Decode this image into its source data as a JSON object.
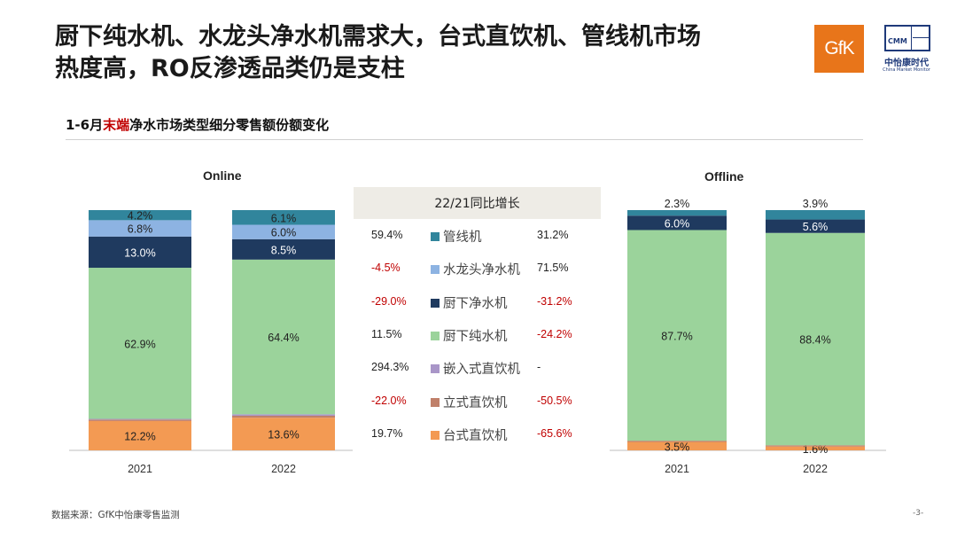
{
  "header": {
    "title_line1": "厨下纯水机、水龙头净水机需求大，台式直饮机、管线机市场",
    "title_line2": "热度高，RO反渗透品类仍是支柱",
    "logo_gfk": "GfK",
    "logo_cmm_en": "CMM",
    "logo_cmm_cn": "中怡康时代",
    "logo_cmm_sub": "China Market Monitor"
  },
  "subtitle": {
    "prefix": "1-6月",
    "highlight": "末端",
    "suffix": "净水市场类型细分零售额份额变化"
  },
  "colors": {
    "管线机": "#31859c",
    "水龙头净水机": "#8db3e2",
    "厨下净水机": "#1f3a5f",
    "厨下纯水机": "#9bd39b",
    "嵌入式直饮机": "#a996c8",
    "立式直饮机": "#c0806a",
    "台式直饮机": "#f39a53",
    "negative_text": "#c00000",
    "title_highlight": "#c00000"
  },
  "growth_table": {
    "header": "22/21同比增长",
    "rows": [
      {
        "online": "59.4%",
        "category": "管线机",
        "offline": "31.2%"
      },
      {
        "online": "-4.5%",
        "category": "水龙头净水机",
        "offline": "71.5%"
      },
      {
        "online": "-29.0%",
        "category": "厨下净水机",
        "offline": "-31.2%"
      },
      {
        "online": "11.5%",
        "category": "厨下纯水机",
        "offline": "-24.2%"
      },
      {
        "online": "294.3%",
        "category": "嵌入式直饮机",
        "offline": "-"
      },
      {
        "online": "-22.0%",
        "category": "立式直饮机",
        "offline": "-50.5%"
      },
      {
        "online": "19.7%",
        "category": "台式直饮机",
        "offline": "-65.6%"
      }
    ]
  },
  "chart_data": [
    {
      "type": "bar",
      "stacked": true,
      "title": "Online",
      "categories": [
        "2021",
        "2022"
      ],
      "series": [
        {
          "name": "台式直饮机",
          "values": [
            12.2,
            13.6
          ],
          "labels": [
            "12.2%",
            "13.6%"
          ]
        },
        {
          "name": "立式直饮机",
          "values": [
            0.6,
            0.8
          ],
          "labels": [
            "",
            ""
          ]
        },
        {
          "name": "嵌入式直饮机",
          "values": [
            0.3,
            0.6
          ],
          "labels": [
            "",
            ""
          ]
        },
        {
          "name": "厨下纯水机",
          "values": [
            62.9,
            64.4
          ],
          "labels": [
            "62.9%",
            "64.4%"
          ]
        },
        {
          "name": "厨下净水机",
          "values": [
            13.0,
            8.5
          ],
          "labels": [
            "13.0%",
            "8.5%"
          ]
        },
        {
          "name": "水龙头净水机",
          "values": [
            6.8,
            6.0
          ],
          "labels": [
            "6.8%",
            "6.0%"
          ]
        },
        {
          "name": "管线机",
          "values": [
            4.2,
            6.1
          ],
          "labels": [
            "4.2%",
            "6.1%"
          ]
        }
      ],
      "ylim": [
        0,
        100
      ]
    },
    {
      "type": "bar",
      "stacked": true,
      "title": "Offline",
      "categories": [
        "2021",
        "2022"
      ],
      "series": [
        {
          "name": "台式直饮机",
          "values": [
            3.5,
            1.6
          ],
          "labels": [
            "3.5%",
            "1.6%"
          ]
        },
        {
          "name": "立式直饮机",
          "values": [
            0.5,
            0.5
          ],
          "labels": [
            "",
            ""
          ]
        },
        {
          "name": "嵌入式直饮机",
          "values": [
            0.0,
            0.0
          ],
          "labels": [
            "",
            ""
          ]
        },
        {
          "name": "厨下纯水机",
          "values": [
            87.7,
            88.4
          ],
          "labels": [
            "87.7%",
            "88.4%"
          ]
        },
        {
          "name": "厨下净水机",
          "values": [
            6.0,
            5.6
          ],
          "labels": [
            "6.0%",
            "5.6%"
          ]
        },
        {
          "name": "水龙头净水机",
          "values": [
            0.0,
            0.0
          ],
          "labels": [
            "",
            ""
          ]
        },
        {
          "name": "管线机",
          "values": [
            2.3,
            3.9
          ],
          "labels": [
            "2.3%",
            "3.9%"
          ]
        }
      ],
      "ylim": [
        0,
        100
      ]
    }
  ],
  "footer": {
    "source": "数据来源：GfK中怡康零售监测",
    "page": "-3-"
  }
}
